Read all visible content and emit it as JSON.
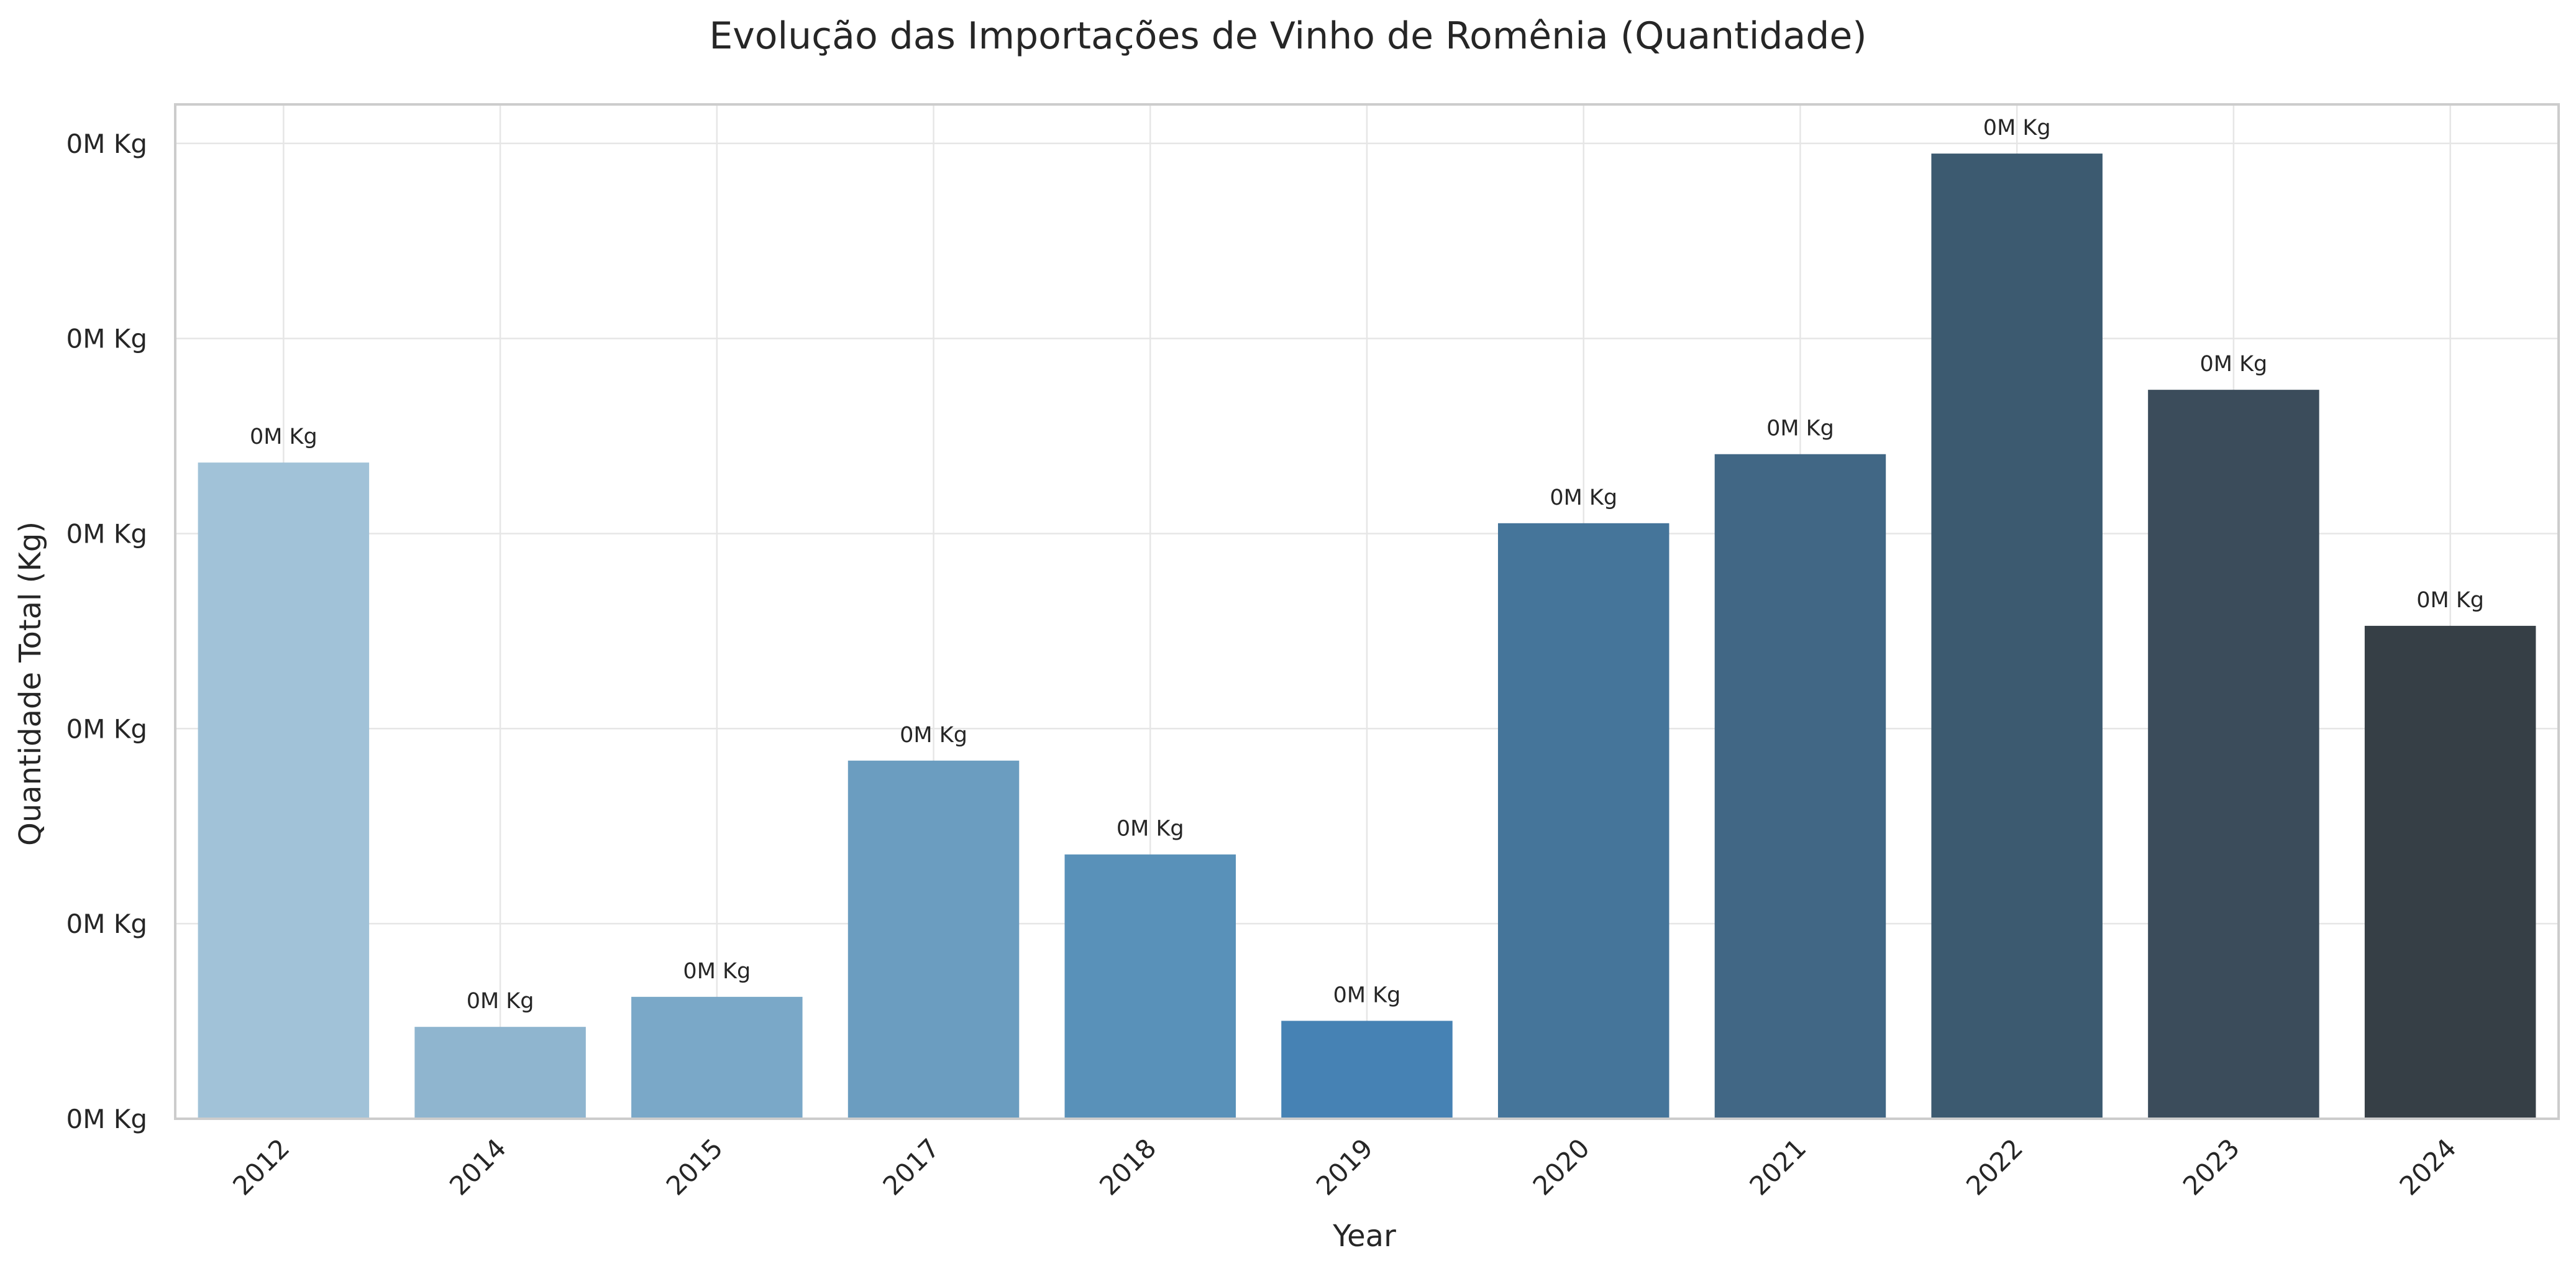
{
  "chart_data": {
    "type": "bar",
    "title": "Evolução das Importações de Vinho de Romênia (Quantidade)",
    "xlabel": "Year",
    "ylabel": "Quantidade Total (Kg)",
    "categories": [
      "2012",
      "2014",
      "2015",
      "2017",
      "2018",
      "2019",
      "2020",
      "2021",
      "2022",
      "2023",
      "2024"
    ],
    "values": [
      33640,
      4710,
      6250,
      18360,
      13550,
      5020,
      30530,
      34070,
      49480,
      37370,
      25270
    ],
    "value_labels": [
      "0M Kg",
      "0M Kg",
      "0M Kg",
      "0M Kg",
      "0M Kg",
      "0M Kg",
      "0M Kg",
      "0M Kg",
      "0M Kg",
      "0M Kg",
      "0M Kg"
    ],
    "ylim": [
      0,
      52000
    ],
    "y_ticks": [
      0,
      10000,
      20000,
      30000,
      40000,
      50000
    ],
    "y_tick_labels": [
      "0M Kg",
      "0M Kg",
      "0M Kg",
      "0M Kg",
      "0M Kg",
      "0M Kg"
    ],
    "colors": [
      "#a1c2d8",
      "#8fb5cf",
      "#7aa8c8",
      "#6b9dc0",
      "#5991b9",
      "#4682b4",
      "#45759a",
      "#416785",
      "#3c5a70",
      "#3b4c5b",
      "#363f46"
    ],
    "grid": true,
    "legend": false
  }
}
